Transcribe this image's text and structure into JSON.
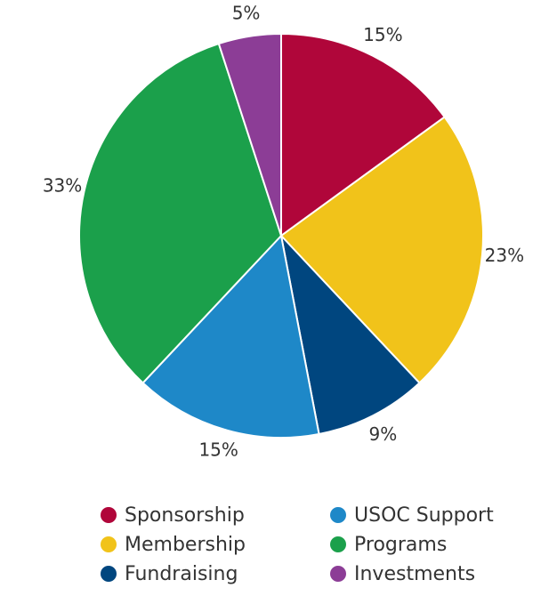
{
  "chart_data": {
    "type": "pie",
    "categories": [
      "Sponsorship",
      "Membership",
      "Fundraising",
      "USOC Support",
      "Programs",
      "Investments"
    ],
    "values": [
      15,
      23,
      9,
      15,
      33,
      5
    ],
    "value_labels": [
      "15%",
      "23%",
      "9%",
      "15%",
      "33%",
      "5%"
    ],
    "colors": [
      "#b0063a",
      "#f1c31a",
      "#00467f",
      "#1e88c8",
      "#1ba04b",
      "#8c3d96"
    ],
    "legend": "bottom"
  }
}
